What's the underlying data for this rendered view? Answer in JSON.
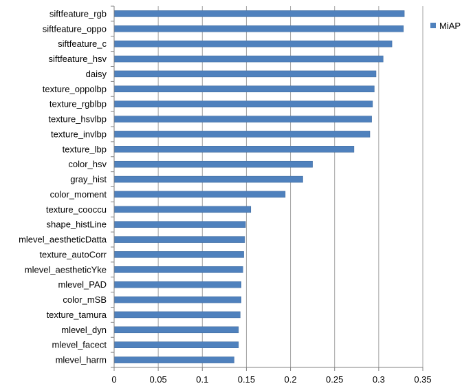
{
  "chart_data": {
    "type": "bar",
    "orientation": "horizontal",
    "categories": [
      "siftfeature_rgb",
      "siftfeature_oppo",
      "siftfeature_c",
      "siftfeature_hsv",
      "daisy",
      "texture_oppolbp",
      "texture_rgblbp",
      "texture_hsvlbp",
      "texture_invlbp",
      "texture_lbp",
      "color_hsv",
      "gray_hist",
      "color_moment",
      "texture_cooccu",
      "shape_histLine",
      "mlevel_aestheticDatta",
      "texture_autoCorr",
      "mlevel_aestheticYke",
      "mlevel_PAD",
      "color_mSB",
      "texture_tamura",
      "mlevel_dyn",
      "mlevel_facect",
      "mlevel_harm"
    ],
    "series": [
      {
        "name": "MiAP",
        "color": "#4F81BD",
        "values": [
          0.329,
          0.328,
          0.315,
          0.305,
          0.297,
          0.295,
          0.293,
          0.292,
          0.29,
          0.272,
          0.225,
          0.214,
          0.194,
          0.155,
          0.149,
          0.148,
          0.147,
          0.146,
          0.144,
          0.144,
          0.143,
          0.141,
          0.141,
          0.136
        ]
      }
    ],
    "xlim": [
      0,
      0.35
    ],
    "xticks": [
      "0",
      "0.05",
      "0.1",
      "0.15",
      "0.2",
      "0.25",
      "0.3",
      "0.35"
    ],
    "grid": true,
    "legend_position": "top-right"
  }
}
